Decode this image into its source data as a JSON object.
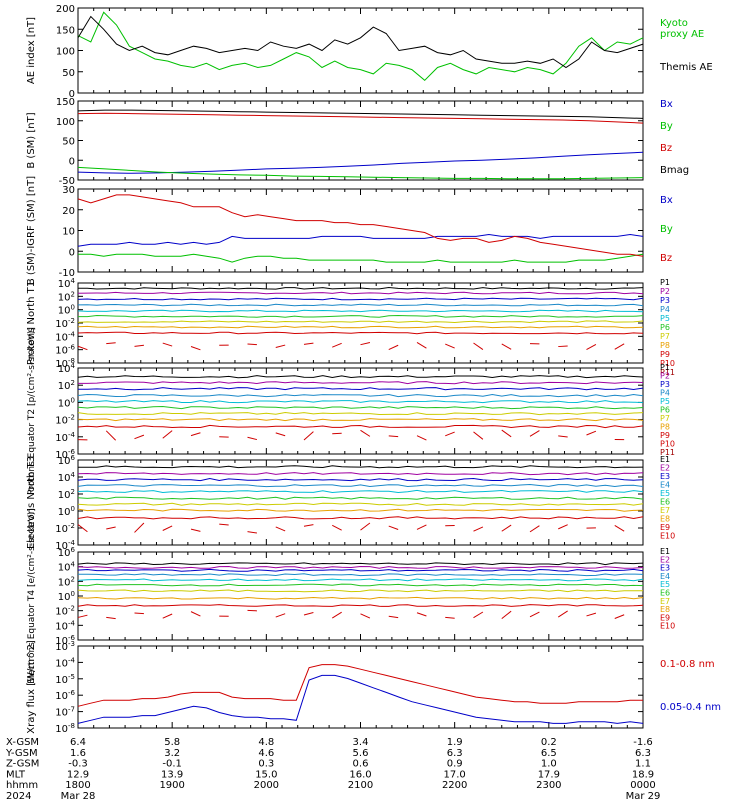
{
  "palette": {
    "axis": "#000000",
    "green": "#00c000",
    "red": "#d00000",
    "blue": "#0000c8",
    "black": "#000000",
    "cyan": "#00bcd4",
    "teal": "#1aa0a0",
    "lime": "#22c322",
    "yellow": "#cccc00",
    "orange": "#e8a000",
    "darkred": "#a00000",
    "purple": "#a000a0",
    "navy": "#000080"
  },
  "chart_data": [
    {
      "id": "ae",
      "type": "line",
      "ylabel": "AE index [nT]",
      "yticks": [
        "200",
        "150",
        "100",
        "50",
        "0"
      ],
      "ylim": [
        0,
        200
      ],
      "series": [
        {
          "name": "Kyoto proxy AE",
          "color": "#00c000",
          "values": [
            135,
            120,
            190,
            160,
            110,
            95,
            80,
            75,
            65,
            60,
            70,
            55,
            65,
            70,
            60,
            65,
            80,
            95,
            85,
            60,
            75,
            60,
            55,
            45,
            70,
            65,
            55,
            30,
            60,
            70,
            55,
            45,
            60,
            55,
            50,
            60,
            55,
            45,
            70,
            110,
            130,
            100,
            120,
            115,
            130
          ]
        },
        {
          "name": "Themis AE",
          "color": "#000000",
          "values": [
            130,
            180,
            150,
            115,
            100,
            110,
            95,
            90,
            100,
            110,
            105,
            95,
            100,
            105,
            100,
            120,
            110,
            105,
            115,
            100,
            125,
            115,
            130,
            155,
            140,
            100,
            105,
            110,
            95,
            90,
            100,
            80,
            75,
            70,
            70,
            75,
            70,
            80,
            60,
            80,
            120,
            100,
            95,
            105,
            115
          ]
        }
      ]
    },
    {
      "id": "bsm",
      "type": "line",
      "ylabel": "B (SM) [nT]",
      "yticks": [
        "150",
        "100",
        "50",
        "0",
        "-50"
      ],
      "ylim": [
        -50,
        150
      ],
      "series": [
        {
          "name": "Bx",
          "color": "#0000c8",
          "values": [
            -30,
            -32,
            -33,
            -32,
            -30,
            -28,
            -25,
            -22,
            -20,
            -18,
            -15,
            -12,
            -8,
            -5,
            -2,
            0,
            3,
            6,
            10,
            14,
            17,
            20
          ]
        },
        {
          "name": "By",
          "color": "#00c000",
          "values": [
            -18,
            -22,
            -26,
            -30,
            -33,
            -35,
            -37,
            -38,
            -40,
            -41,
            -42,
            -43,
            -44,
            -45,
            -46,
            -46,
            -47,
            -47,
            -47,
            -46,
            -45,
            -44
          ]
        },
        {
          "name": "Bz",
          "color": "#d00000",
          "values": [
            118,
            119,
            118,
            117,
            116,
            115,
            114,
            113,
            112,
            111,
            110,
            109,
            108,
            107,
            106,
            105,
            104,
            103,
            102,
            100,
            97,
            94
          ]
        },
        {
          "name": "Bmag",
          "color": "#000000",
          "values": [
            125,
            127,
            127,
            126,
            125,
            124,
            123,
            122,
            121,
            120,
            119,
            118,
            117,
            116,
            115,
            114,
            113,
            112,
            111,
            110,
            108,
            106
          ]
        }
      ]
    },
    {
      "id": "bigrf",
      "type": "line",
      "ylabel": "B (SM)-IGRF (SM) [nT]",
      "yticks": [
        "30",
        "20",
        "10",
        "0",
        "-10"
      ],
      "ylim": [
        -12,
        30
      ],
      "series": [
        {
          "name": "Bx",
          "color": "#0000c8",
          "values": [
            1,
            2,
            2,
            2,
            3,
            2,
            2,
            3,
            2,
            3,
            2,
            3,
            6,
            5,
            5,
            5,
            5,
            5,
            5,
            6,
            6,
            6,
            6,
            5,
            5,
            5,
            5,
            5,
            6,
            6,
            6,
            6,
            7,
            6,
            6,
            6,
            5,
            6,
            6,
            6,
            6,
            6,
            6,
            7,
            6
          ]
        },
        {
          "name": "By",
          "color": "#00c000",
          "values": [
            -3,
            -3,
            -4,
            -3,
            -3,
            -3,
            -4,
            -4,
            -4,
            -3,
            -4,
            -5,
            -7,
            -5,
            -4,
            -4,
            -5,
            -5,
            -6,
            -6,
            -6,
            -6,
            -6,
            -6,
            -7,
            -7,
            -7,
            -7,
            -6,
            -7,
            -7,
            -7,
            -7,
            -7,
            -6,
            -7,
            -7,
            -7,
            -7,
            -6,
            -6,
            -6,
            -5,
            -4,
            -3
          ]
        },
        {
          "name": "Bz",
          "color": "#d00000",
          "values": [
            25,
            23,
            25,
            27,
            27,
            26,
            25,
            24,
            23,
            21,
            21,
            21,
            18,
            16,
            17,
            16,
            15,
            14,
            14,
            14,
            13,
            13,
            12,
            12,
            11,
            10,
            9,
            8,
            5,
            4,
            5,
            5,
            3,
            4,
            6,
            5,
            3,
            2,
            1,
            0,
            -1,
            -2,
            -3,
            -3,
            -4
          ]
        }
      ]
    },
    {
      "id": "protons-north",
      "type": "line",
      "ylabel": "Protons North T1",
      "yticks": [
        "10^4",
        "10^2",
        "10^0",
        "10^-2",
        "10^-4",
        "10^-6",
        "10^-8"
      ],
      "ylim": [
        -8,
        4
      ],
      "log": true,
      "series": [
        {
          "name": "P1",
          "color": "#000000",
          "level": 3.2
        },
        {
          "name": "P2",
          "color": "#a000a0",
          "level": 2.5
        },
        {
          "name": "P3",
          "color": "#0000c8",
          "level": 1.6
        },
        {
          "name": "P4",
          "color": "#1a88c8",
          "level": 0.7
        },
        {
          "name": "P5",
          "color": "#00bcd4",
          "level": -0.2
        },
        {
          "name": "P6",
          "color": "#22c322",
          "level": -1.0
        },
        {
          "name": "P7",
          "color": "#cccc00",
          "level": -1.8
        },
        {
          "name": "P8",
          "color": "#e8a000",
          "level": -2.6
        },
        {
          "name": "P9",
          "color": "#d00000",
          "level": -3.5
        },
        {
          "name": "P10",
          "color": "#d00000",
          "level": -5.5,
          "broken": true
        },
        {
          "name": "P11",
          "color": "#a00000",
          "level": -7.2,
          "hidden": true
        }
      ]
    },
    {
      "id": "protons-equator",
      "type": "line",
      "ylabel": "Protons Equator T2 [p/(cm²-s-sr-keV)]",
      "yticks": [
        "10^4",
        "10^2",
        "10^0",
        "10^-2",
        "10^-4",
        "10^-6"
      ],
      "ylim": [
        -6,
        4
      ],
      "log": true,
      "series": [
        {
          "name": "P1",
          "color": "#000000",
          "level": 3.0
        },
        {
          "name": "P2",
          "color": "#a000a0",
          "level": 2.3
        },
        {
          "name": "P3",
          "color": "#0000c8",
          "level": 1.6
        },
        {
          "name": "P4",
          "color": "#1a88c8",
          "level": 0.8
        },
        {
          "name": "P5",
          "color": "#00bcd4",
          "level": 0.1
        },
        {
          "name": "P6",
          "color": "#22c322",
          "level": -0.6
        },
        {
          "name": "P7",
          "color": "#cccc00",
          "level": -1.3
        },
        {
          "name": "P8",
          "color": "#e8a000",
          "level": -2.0
        },
        {
          "name": "P9",
          "color": "#d00000",
          "level": -2.8
        },
        {
          "name": "P10",
          "color": "#d00000",
          "level": -3.8,
          "broken": true
        },
        {
          "name": "P11",
          "color": "#a00000",
          "level": -5.2,
          "hidden": true
        }
      ]
    },
    {
      "id": "electrons-north",
      "type": "line",
      "ylabel": "Electrons North T3",
      "yticks": [
        "10^6",
        "10^4",
        "10^2",
        "10^0",
        "10^-2",
        "10^-4"
      ],
      "ylim": [
        -4,
        6
      ],
      "log": true,
      "series": [
        {
          "name": "E1",
          "color": "#000000",
          "level": 5.2
        },
        {
          "name": "E2",
          "color": "#a000a0",
          "level": 4.4
        },
        {
          "name": "E3",
          "color": "#0000c8",
          "level": 3.7
        },
        {
          "name": "E4",
          "color": "#1a88c8",
          "level": 3.0
        },
        {
          "name": "E5",
          "color": "#00bcd4",
          "level": 2.3
        },
        {
          "name": "E6",
          "color": "#22c322",
          "level": 1.5
        },
        {
          "name": "E7",
          "color": "#cccc00",
          "level": 0.8
        },
        {
          "name": "E8",
          "color": "#e8a000",
          "level": 0.1
        },
        {
          "name": "E9",
          "color": "#d00000",
          "level": -0.8
        },
        {
          "name": "E10",
          "color": "#d00000",
          "level": -2.0,
          "broken": true
        }
      ]
    },
    {
      "id": "electrons-equator",
      "type": "line",
      "ylabel": "Electrons Equator T4 [e/(cm²-s-sr-keV)]",
      "yticks": [
        "10^6",
        "10^4",
        "10^2",
        "10^0",
        "10^-2",
        "10^-4",
        "10^-6"
      ],
      "ylim": [
        -6,
        6
      ],
      "log": true,
      "series": [
        {
          "name": "E1",
          "color": "#000000",
          "level": 4.4
        },
        {
          "name": "E2",
          "color": "#a000a0",
          "level": 3.9
        },
        {
          "name": "E3",
          "color": "#0000c8",
          "level": 3.5
        },
        {
          "name": "E4",
          "color": "#1a88c8",
          "level": 2.9
        },
        {
          "name": "E5",
          "color": "#00bcd4",
          "level": 2.2
        },
        {
          "name": "E6",
          "color": "#22c322",
          "level": 1.5
        },
        {
          "name": "E7",
          "color": "#cccc00",
          "level": 0.7
        },
        {
          "name": "E8",
          "color": "#e8a000",
          "level": -0.3
        },
        {
          "name": "E9",
          "color": "#d00000",
          "level": -1.3
        },
        {
          "name": "E10",
          "color": "#d00000",
          "level": -2.5,
          "broken": true
        }
      ]
    },
    {
      "id": "xray",
      "type": "line",
      "ylabel": "Xray flux [W/m^2]",
      "yticks": [
        "10^-3",
        "10^-4",
        "10^-5",
        "10^-6",
        "10^-7",
        "10^-8"
      ],
      "ylim": [
        -8.3,
        -3
      ],
      "log": true,
      "series": [
        {
          "name": "0.1-0.8 nm",
          "color": "#d00000",
          "values": [
            -6.9,
            -6.7,
            -6.5,
            -6.5,
            -6.5,
            -6.4,
            -6.4,
            -6.3,
            -6.1,
            -6.0,
            -6.0,
            -6.0,
            -6.3,
            -6.4,
            -6.4,
            -6.4,
            -6.5,
            -6.5,
            -4.4,
            -4.2,
            -4.2,
            -4.3,
            -4.5,
            -4.7,
            -4.9,
            -5.1,
            -5.3,
            -5.5,
            -5.7,
            -5.9,
            -6.1,
            -6.3,
            -6.4,
            -6.5,
            -6.6,
            -6.6,
            -6.7,
            -6.7,
            -6.7,
            -6.6,
            -6.6,
            -6.6,
            -6.6,
            -6.5,
            -6.5
          ]
        },
        {
          "name": "0.05-0.4 nm",
          "color": "#0000c8",
          "values": [
            -8.0,
            -7.8,
            -7.6,
            -7.6,
            -7.6,
            -7.5,
            -7.5,
            -7.3,
            -7.1,
            -6.9,
            -7.0,
            -7.3,
            -7.5,
            -7.6,
            -7.6,
            -7.7,
            -7.7,
            -7.8,
            -5.2,
            -4.9,
            -4.9,
            -5.1,
            -5.4,
            -5.7,
            -6.0,
            -6.3,
            -6.6,
            -6.8,
            -7.0,
            -7.2,
            -7.4,
            -7.6,
            -7.7,
            -7.8,
            -7.9,
            -7.9,
            -7.9,
            -8.0,
            -8.0,
            -7.9,
            -7.9,
            -7.9,
            -8.0,
            -7.9,
            -8.0
          ]
        }
      ]
    }
  ],
  "xaxis": {
    "row_labels": [
      "X-GSM",
      "Y-GSM",
      "Z-GSM",
      "MLT",
      "hhmm",
      "2024"
    ],
    "columns": [
      [
        "6.4",
        "1.6",
        "-0.3",
        "12.9",
        "1800",
        "Mar 28"
      ],
      [
        "5.8",
        "3.2",
        "-0.1",
        "13.9",
        "1900",
        ""
      ],
      [
        "4.8",
        "4.6",
        "0.3",
        "15.0",
        "2000",
        ""
      ],
      [
        "3.4",
        "5.6",
        "0.6",
        "16.0",
        "2100",
        ""
      ],
      [
        "1.9",
        "6.3",
        "0.9",
        "17.0",
        "2200",
        ""
      ],
      [
        "0.2",
        "6.5",
        "1.0",
        "17.9",
        "2300",
        ""
      ],
      [
        "-1.6",
        "6.3",
        "1.1",
        "18.9",
        "0000",
        "Mar 29"
      ]
    ]
  }
}
